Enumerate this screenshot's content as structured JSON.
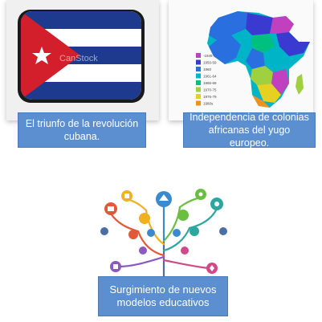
{
  "captions": {
    "cuba": "El triunfo de la revolución cubana.",
    "africa": "Independencia de colonias africanas del yugo europeo.",
    "education": "Surgimiento de nuevos modelos educativos"
  },
  "cuba_image": {
    "watermark": "CanStock"
  },
  "africa_map": {
    "legend": [
      "-1949",
      "1950-59",
      "1960",
      "1961-64",
      "1965-69",
      "1970-75",
      "1976-79",
      "1980s"
    ],
    "legend_colors": [
      "#c040c0",
      "#3a3ad0",
      "#2a6fe0",
      "#00b4c8",
      "#00c080",
      "#a0d040",
      "#e6d020",
      "#f09020"
    ]
  }
}
